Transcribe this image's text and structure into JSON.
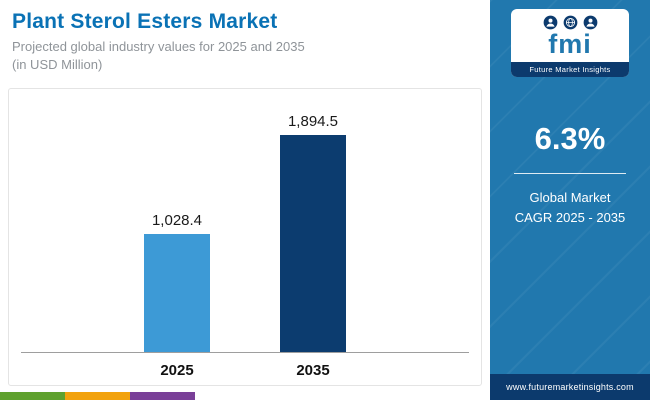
{
  "header": {
    "title": "Plant Sterol Esters Market",
    "subtitle_line1": "Projected global industry values for 2025 and 2035",
    "subtitle_line2": "(in USD Million)"
  },
  "chart_data": {
    "type": "bar",
    "categories": [
      "2025",
      "2035"
    ],
    "values": [
      1028.4,
      1894.5
    ],
    "value_labels": [
      "1,028.4",
      "1,894.5"
    ],
    "bar_colors": [
      "#3d9ad6",
      "#0c3c6f"
    ],
    "title": "Plant Sterol Esters Market",
    "xlabel": "",
    "ylabel": "USD Million",
    "ylim": [
      0,
      2100
    ],
    "grid": false,
    "legend": false
  },
  "sidebar": {
    "logo": {
      "text": "fmi",
      "caption": "Future Market Insights"
    },
    "stat": {
      "value": "6.3%",
      "line1": "Global Market",
      "line2": "CAGR 2025 - 2035"
    },
    "footer_url": "www.futuremarketinsights.com",
    "colors": {
      "background": "#2178ae",
      "footer": "#0c3a6d"
    }
  },
  "bottom_strip": {
    "colors": [
      "#5fa12e",
      "#f2a20d",
      "#7a3f98"
    ]
  }
}
